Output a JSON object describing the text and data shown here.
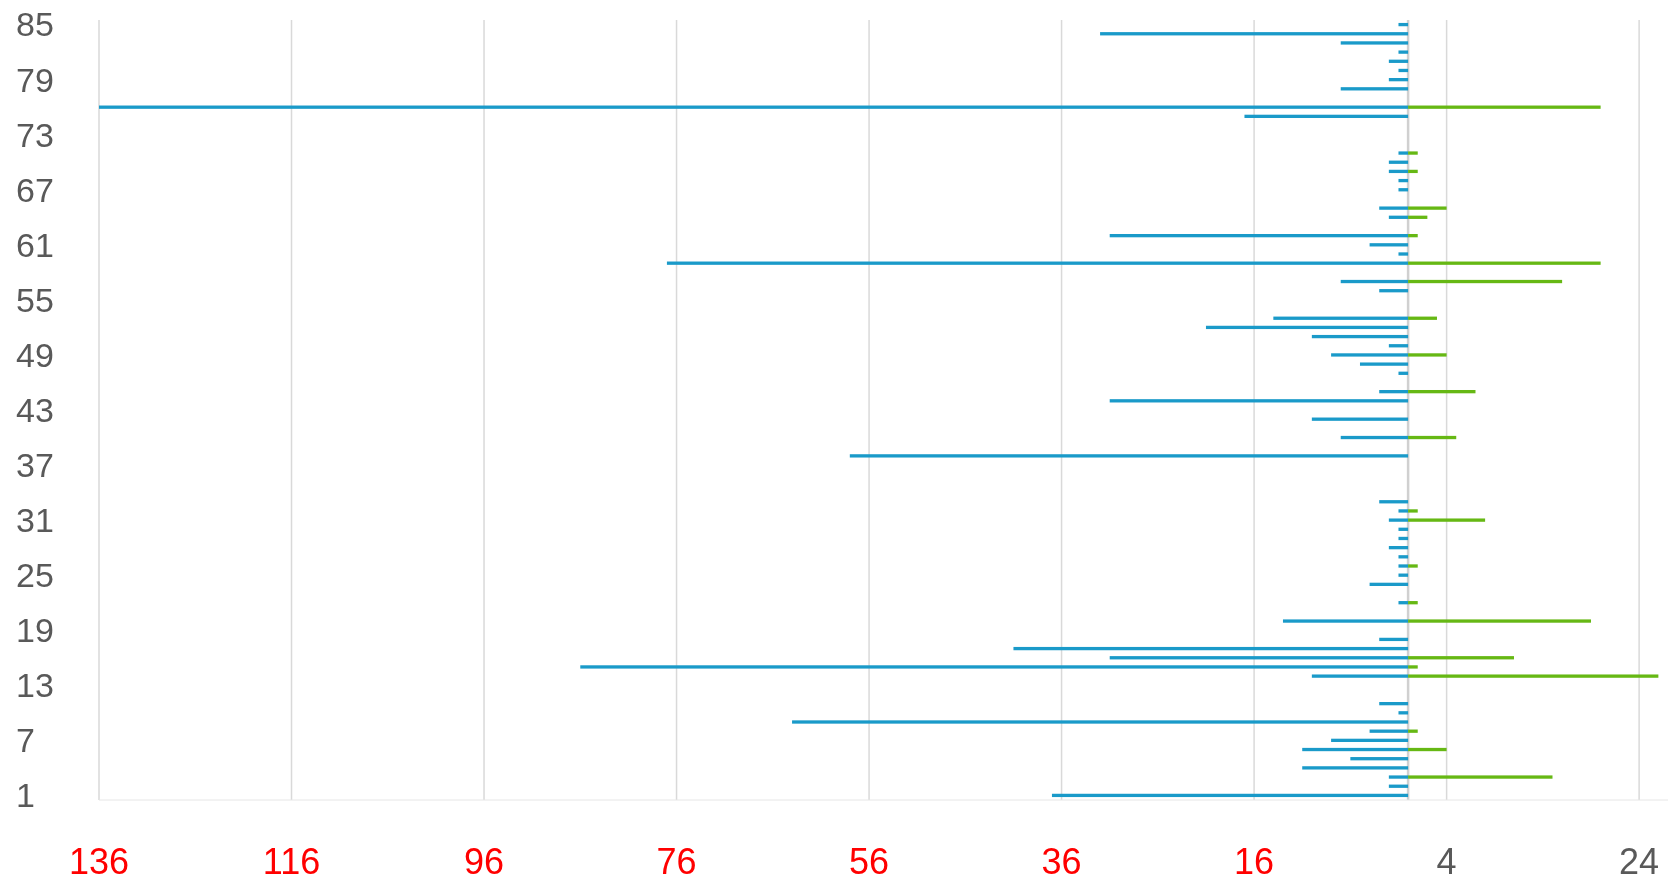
{
  "chart_data": {
    "type": "bar",
    "orientation": "horizontal",
    "categories": [
      "85",
      null,
      null,
      null,
      null,
      null,
      "79",
      null,
      null,
      null,
      null,
      null,
      "73",
      null,
      null,
      null,
      null,
      null,
      "67",
      null,
      null,
      null,
      null,
      null,
      "61",
      null,
      null,
      null,
      null,
      null,
      "55",
      null,
      null,
      null,
      null,
      null,
      "49",
      null,
      null,
      null,
      null,
      null,
      "43",
      null,
      null,
      null,
      null,
      null,
      "37",
      null,
      null,
      null,
      null,
      null,
      "31",
      null,
      null,
      null,
      null,
      null,
      "25",
      null,
      null,
      null,
      null,
      null,
      "19",
      null,
      null,
      null,
      null,
      null,
      "13",
      null,
      null,
      null,
      null,
      null,
      "7",
      null,
      null,
      null,
      null,
      null,
      "1"
    ],
    "series": [
      {
        "color": "#1a9ac9",
        "values": [
          -1,
          -32,
          -7,
          -1,
          -2,
          -1,
          -2,
          -7,
          null,
          -136,
          -17,
          null,
          null,
          null,
          -1,
          -2,
          -2,
          -1,
          -1,
          null,
          -3,
          -2,
          null,
          -31,
          -4,
          -1,
          -77,
          null,
          -7,
          -3,
          null,
          null,
          -14,
          -21,
          -10,
          -2,
          -8,
          -5,
          -1,
          null,
          -3,
          -31,
          null,
          -10,
          null,
          -7,
          null,
          -58,
          null,
          null,
          null,
          null,
          -3,
          -1,
          -2,
          -1,
          -1,
          -2,
          -1,
          -1,
          -1,
          -4,
          null,
          -1,
          null,
          -13,
          null,
          -3,
          -41,
          -31,
          -86,
          -10,
          null,
          null,
          -3,
          -1,
          -64,
          -4,
          -8,
          -11,
          -6,
          -11,
          -2,
          -2,
          -37
        ]
      },
      {
        "color": "#66b814",
        "values": [
          null,
          null,
          null,
          null,
          null,
          null,
          null,
          null,
          null,
          20,
          null,
          null,
          null,
          null,
          1,
          null,
          1,
          null,
          null,
          null,
          4,
          2,
          null,
          1,
          null,
          null,
          20,
          null,
          16,
          null,
          null,
          null,
          3,
          null,
          null,
          null,
          4,
          null,
          null,
          null,
          7,
          null,
          null,
          null,
          null,
          5,
          null,
          null,
          null,
          null,
          null,
          null,
          null,
          1,
          8,
          null,
          null,
          null,
          null,
          1,
          null,
          null,
          null,
          1,
          null,
          19,
          null,
          null,
          null,
          11,
          1,
          26,
          null,
          null,
          null,
          null,
          null,
          1,
          null,
          4,
          null,
          null,
          15,
          null,
          null
        ]
      }
    ],
    "xlim": [
      -136,
      27
    ],
    "xticks": [
      {
        "value": -136,
        "label": "136"
      },
      {
        "value": -116,
        "label": "116"
      },
      {
        "value": -96,
        "label": "96"
      },
      {
        "value": -76,
        "label": "76"
      },
      {
        "value": -56,
        "label": "56"
      },
      {
        "value": -36,
        "label": "36"
      },
      {
        "value": -16,
        "label": "16"
      },
      4,
      24
    ],
    "grid": "x"
  }
}
